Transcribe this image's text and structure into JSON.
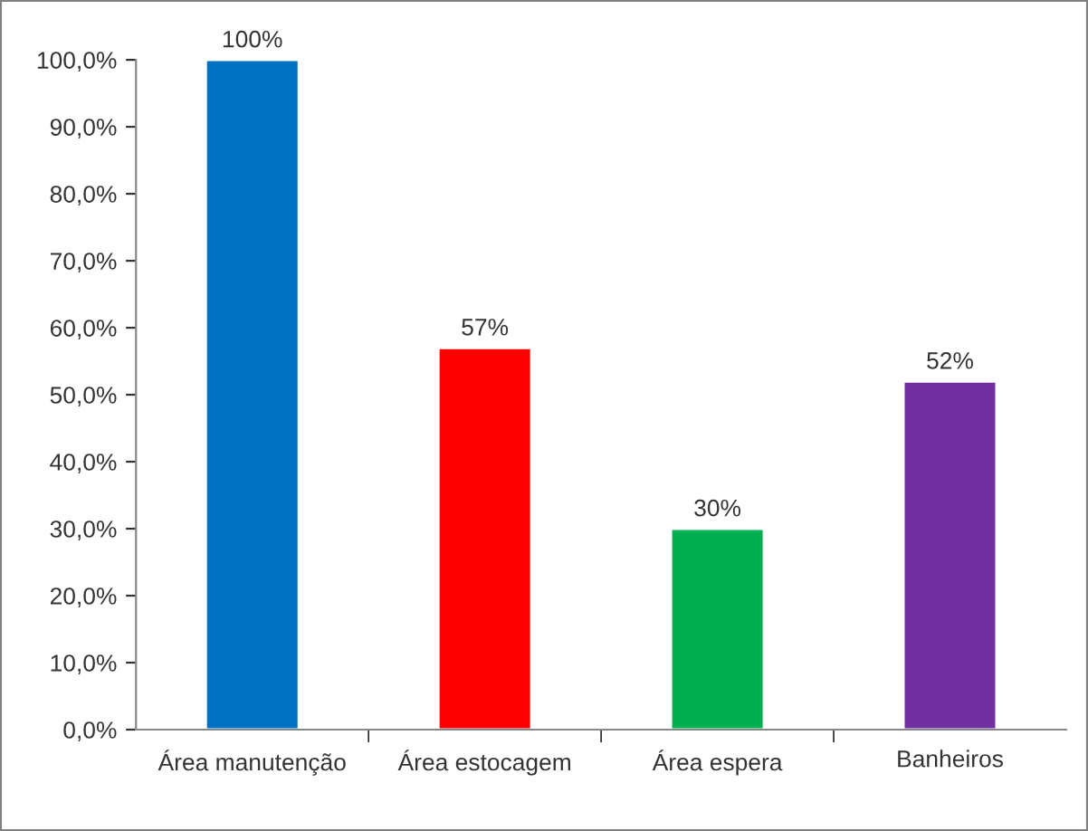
{
  "chart_data": {
    "type": "bar",
    "categories": [
      "Área manutenção",
      "Área estocagem",
      "Área espera",
      "Banheiros"
    ],
    "values": [
      100,
      57,
      30,
      52
    ],
    "colors": [
      "#0070c0",
      "#ff0000",
      "#00b050",
      "#7030a0"
    ],
    "value_labels": [
      "100%",
      "57%",
      "30%",
      "52%"
    ],
    "ylim": [
      0,
      100
    ],
    "yticks": [
      {
        "value": 0,
        "label": "0,0%"
      },
      {
        "value": 10,
        "label": "10,0%"
      },
      {
        "value": 20,
        "label": "20,0%"
      },
      {
        "value": 30,
        "label": "30,0%"
      },
      {
        "value": 40,
        "label": "40,0%"
      },
      {
        "value": 50,
        "label": "50,0%"
      },
      {
        "value": 60,
        "label": "60,0%"
      },
      {
        "value": 70,
        "label": "70,0%"
      },
      {
        "value": 80,
        "label": "80,0%"
      },
      {
        "value": 90,
        "label": "90,0%"
      },
      {
        "value": 100,
        "label": "100,0%"
      }
    ],
    "grid": false,
    "legend": false
  }
}
